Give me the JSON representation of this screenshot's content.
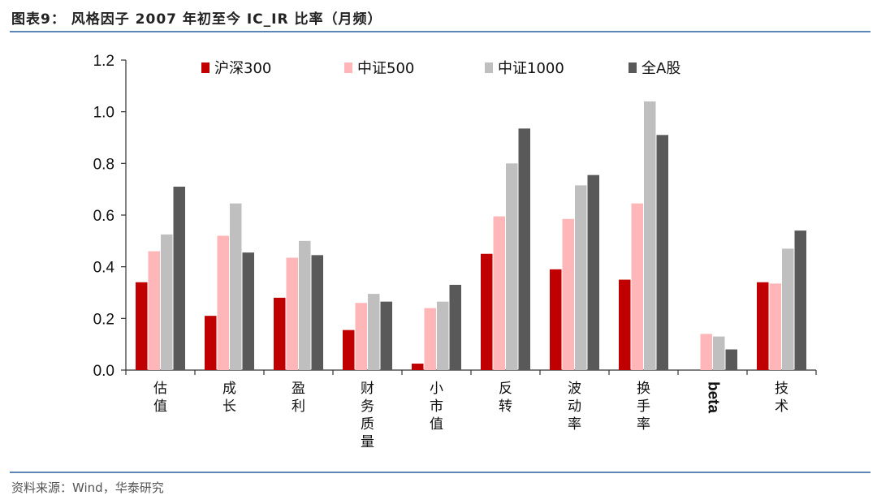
{
  "figure": {
    "title": "图表9：  风格因子 2007 年初至今 IC_IR 比率（月频）",
    "source": "资料来源：Wind，华泰研究"
  },
  "chart_data": {
    "type": "bar",
    "title": "",
    "xlabel": "",
    "ylabel": "",
    "ylim": [
      0,
      1.2
    ],
    "yticks": [
      "0.0",
      "0.2",
      "0.4",
      "0.6",
      "0.8",
      "1.0",
      "1.2"
    ],
    "grid": false,
    "legend_position": "top",
    "categories": [
      "估值",
      "成长",
      "盈利",
      "财务质量",
      "小市值",
      "反转",
      "波动率",
      "换手率",
      "beta",
      "技术"
    ],
    "series": [
      {
        "name": "沪深300",
        "color": "#c00000",
        "values": [
          0.34,
          0.21,
          0.28,
          0.155,
          0.025,
          0.45,
          0.39,
          0.35,
          0.0,
          0.34
        ]
      },
      {
        "name": "中证500",
        "color": "#ffb6b9",
        "values": [
          0.46,
          0.52,
          0.435,
          0.26,
          0.24,
          0.595,
          0.585,
          0.645,
          0.14,
          0.335
        ]
      },
      {
        "name": "中证1000",
        "color": "#bfbfbf",
        "values": [
          0.525,
          0.645,
          0.5,
          0.295,
          0.265,
          0.8,
          0.715,
          1.04,
          0.13,
          0.47
        ]
      },
      {
        "name": "全A股",
        "color": "#595959",
        "values": [
          0.71,
          0.455,
          0.445,
          0.265,
          0.33,
          0.935,
          0.755,
          0.91,
          0.08,
          0.54
        ]
      }
    ]
  }
}
